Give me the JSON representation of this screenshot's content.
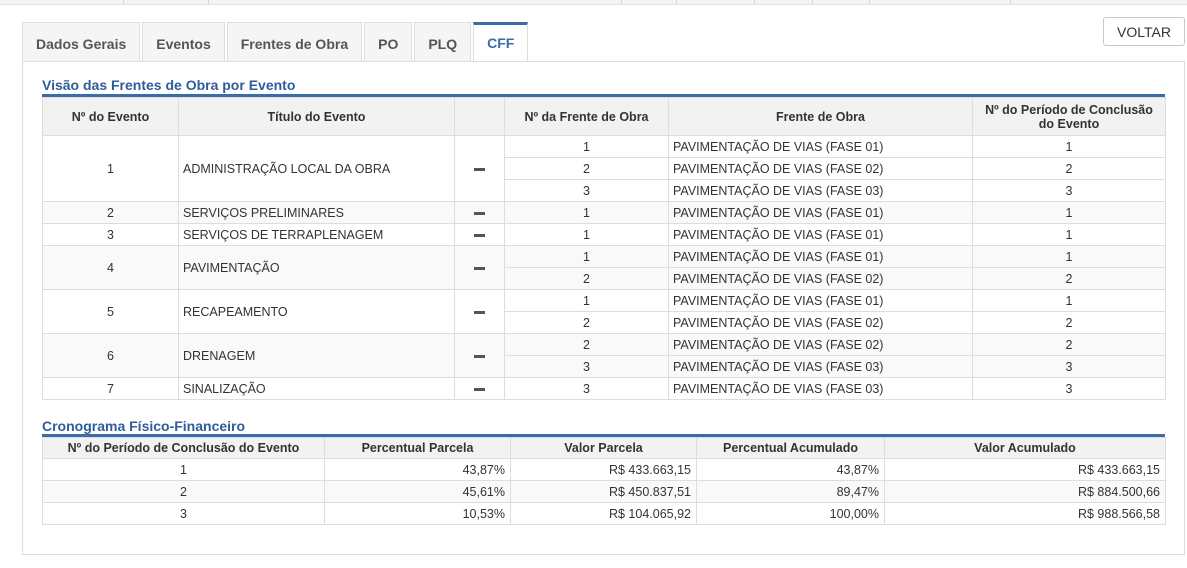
{
  "tabs": [
    {
      "label": "Dados Gerais",
      "active": false
    },
    {
      "label": "Eventos",
      "active": false
    },
    {
      "label": "Frentes de Obra",
      "active": false
    },
    {
      "label": "PO",
      "active": false
    },
    {
      "label": "PLQ",
      "active": false
    },
    {
      "label": "CFF",
      "active": true
    }
  ],
  "voltar_label": "VOLTAR",
  "frentes": {
    "title": "Visão das Frentes de Obra por Evento",
    "columns": [
      "Nº do Evento",
      "Título do Evento",
      "",
      "Nº da Frente de Obra",
      "Frente de Obra",
      "Nº do Período de Conclusão do Evento"
    ],
    "events": [
      {
        "numero": "1",
        "titulo": "ADMINISTRAÇÃO LOCAL DA OBRA",
        "icon": "minus-icon",
        "frentes": [
          {
            "numero": "1",
            "nome": "PAVIMENTAÇÃO DE VIAS (FASE 01)",
            "periodo": "1"
          },
          {
            "numero": "2",
            "nome": "PAVIMENTAÇÃO DE VIAS (FASE 02)",
            "periodo": "2"
          },
          {
            "numero": "3",
            "nome": "PAVIMENTAÇÃO DE VIAS (FASE 03)",
            "periodo": "3"
          }
        ]
      },
      {
        "numero": "2",
        "titulo": "SERVIÇOS PRELIMINARES",
        "icon": "minus-icon",
        "frentes": [
          {
            "numero": "1",
            "nome": "PAVIMENTAÇÃO DE VIAS (FASE 01)",
            "periodo": "1"
          }
        ]
      },
      {
        "numero": "3",
        "titulo": "SERVIÇOS DE TERRAPLENAGEM",
        "icon": "minus-icon",
        "frentes": [
          {
            "numero": "1",
            "nome": "PAVIMENTAÇÃO DE VIAS (FASE 01)",
            "periodo": "1"
          }
        ]
      },
      {
        "numero": "4",
        "titulo": "PAVIMENTAÇÃO",
        "icon": "minus-icon",
        "frentes": [
          {
            "numero": "1",
            "nome": "PAVIMENTAÇÃO DE VIAS (FASE 01)",
            "periodo": "1"
          },
          {
            "numero": "2",
            "nome": "PAVIMENTAÇÃO DE VIAS (FASE 02)",
            "periodo": "2"
          }
        ]
      },
      {
        "numero": "5",
        "titulo": "RECAPEAMENTO",
        "icon": "minus-icon",
        "frentes": [
          {
            "numero": "1",
            "nome": "PAVIMENTAÇÃO DE VIAS (FASE 01)",
            "periodo": "1"
          },
          {
            "numero": "2",
            "nome": "PAVIMENTAÇÃO DE VIAS (FASE 02)",
            "periodo": "2"
          }
        ]
      },
      {
        "numero": "6",
        "titulo": "DRENAGEM",
        "icon": "minus-icon",
        "frentes": [
          {
            "numero": "2",
            "nome": "PAVIMENTAÇÃO DE VIAS (FASE 02)",
            "periodo": "2"
          },
          {
            "numero": "3",
            "nome": "PAVIMENTAÇÃO DE VIAS (FASE 03)",
            "periodo": "3"
          }
        ]
      },
      {
        "numero": "7",
        "titulo": "SINALIZAÇÃO",
        "icon": "minus-icon",
        "frentes": [
          {
            "numero": "3",
            "nome": "PAVIMENTAÇÃO DE VIAS (FASE 03)",
            "periodo": "3"
          }
        ]
      }
    ]
  },
  "cronograma": {
    "title": "Cronograma Físico-Financeiro",
    "columns": [
      "Nº do Período de Conclusão do Evento",
      "Percentual Parcela",
      "Valor Parcela",
      "Percentual Acumulado",
      "Valor Acumulado"
    ],
    "rows": [
      [
        "1",
        "43,87%",
        "R$ 433.663,15",
        "43,87%",
        "R$ 433.663,15"
      ],
      [
        "2",
        "45,61%",
        "R$ 450.837,51",
        "89,47%",
        "R$ 884.500,66"
      ],
      [
        "3",
        "10,53%",
        "R$ 104.065,92",
        "100,00%",
        "R$ 988.566,58"
      ]
    ]
  },
  "colors": {
    "accent": "#3a6ca8",
    "section_title": "#2f5d9a",
    "header_bg": "#f2f2f2",
    "border": "#dddddd"
  }
}
